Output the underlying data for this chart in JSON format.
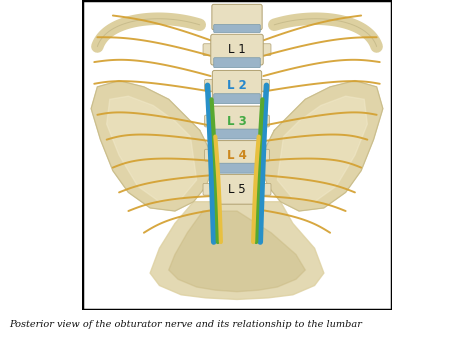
{
  "figure_width": 4.74,
  "figure_height": 3.41,
  "dpi": 100,
  "outer_bg": "#ffffff",
  "caption_text": "Posterior view of the obturator nerve and its relationship to the lumbar",
  "caption_fontsize": 7.0,
  "caption_color": "#111111",
  "spine_color": "#e8dfc0",
  "disc_color": "#9ab4c8",
  "nerve_yellow_color": "#d4a030",
  "nerve_yellow_bright": "#e8c040",
  "nerve_blue_color": "#2890c8",
  "nerve_green_color": "#58a830",
  "pelvis_color": "#ddd0a0",
  "pelvis_shadow": "#c8bc8c",
  "pelvis_highlight": "#f0e8c8",
  "vertebra_labels": [
    "L 1",
    "L 2",
    "L 3",
    "L 4",
    "L 5"
  ],
  "L1_color": "#111111",
  "L2_color": "#2888cc",
  "L3_color": "#44aa44",
  "L4_color": "#cc8820",
  "L5_color": "#111111"
}
